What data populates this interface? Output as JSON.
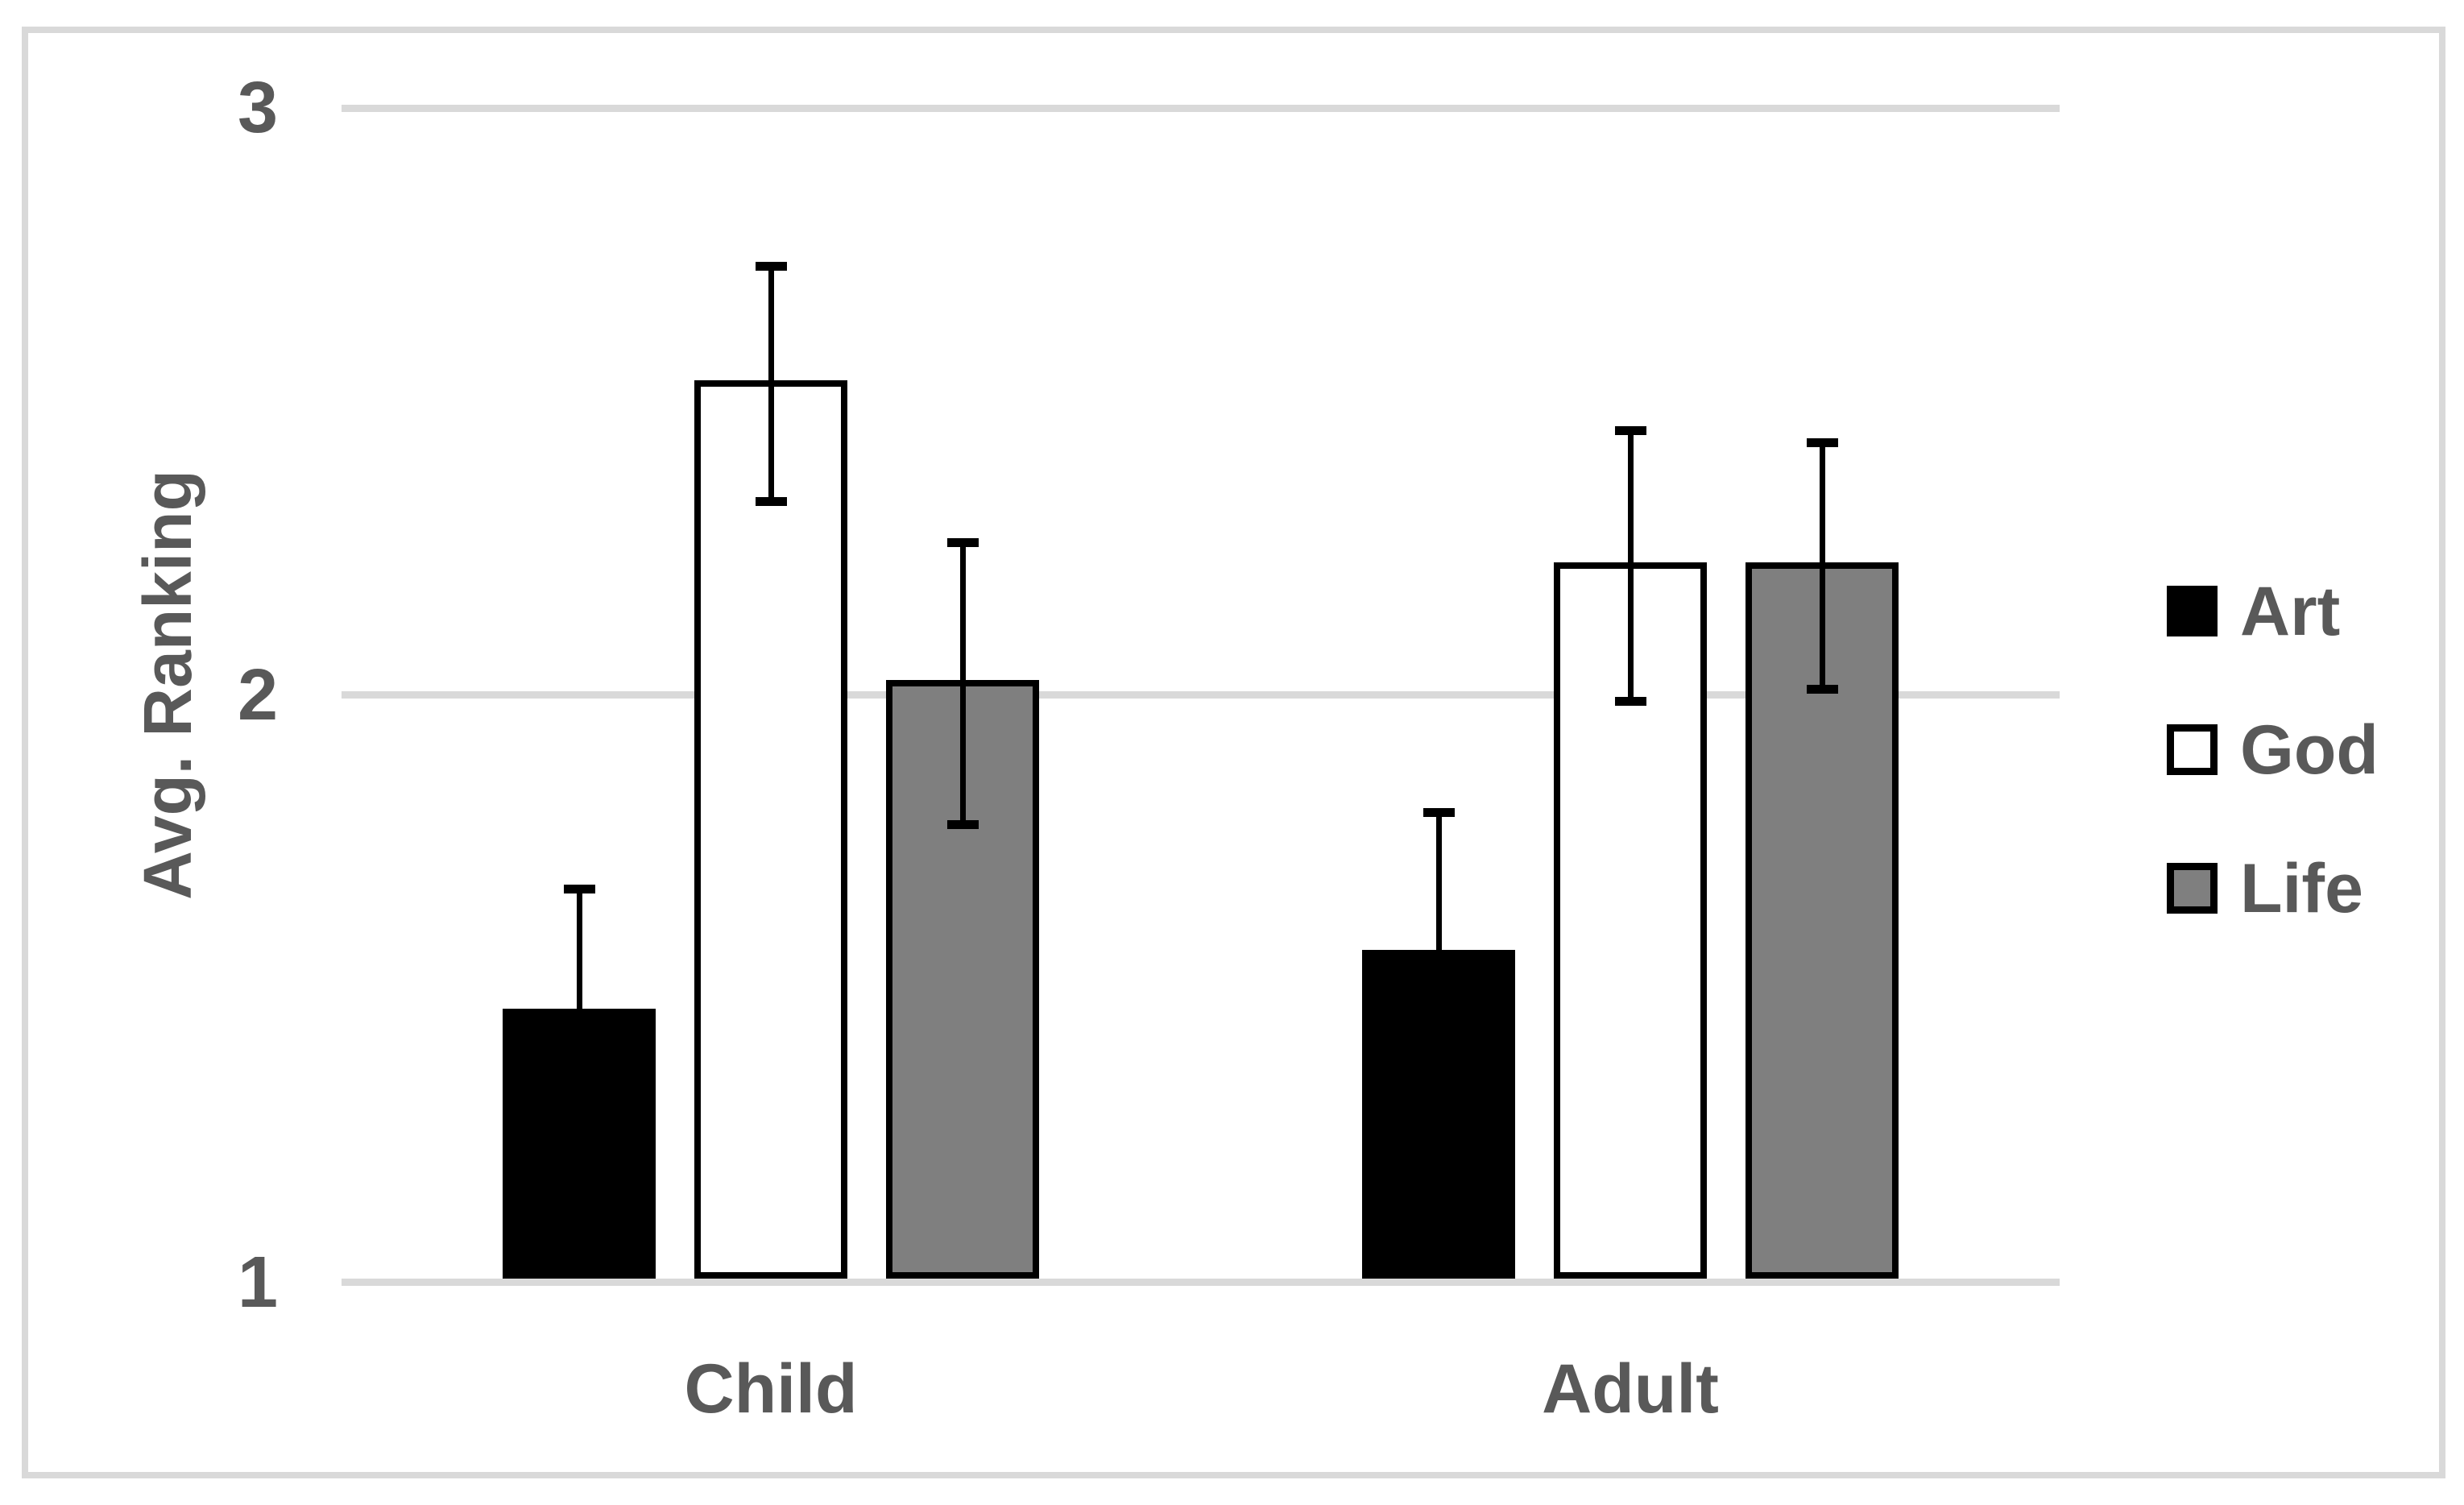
{
  "chart_data": {
    "type": "bar",
    "title": "",
    "categories": [
      "Child",
      "Adult"
    ],
    "series": [
      {
        "name": "Art",
        "fill": "#000000",
        "values": [
          1.46,
          1.56
        ],
        "errors": [
          0.21,
          0.24
        ]
      },
      {
        "name": "God",
        "fill": "#ffffff",
        "values": [
          2.53,
          2.22
        ],
        "errors": [
          0.2,
          0.23
        ]
      },
      {
        "name": "Life",
        "fill": "#7f7f7f",
        "values": [
          2.02,
          2.22
        ],
        "errors": [
          0.24,
          0.21
        ]
      }
    ],
    "xlabel": "",
    "ylabel": "Avg. Ranking",
    "yticks": [
      "1",
      "2",
      "3"
    ],
    "ylim": [
      1,
      3
    ],
    "grid": "horizontal",
    "legend_position": "right",
    "error_bars": true
  },
  "colors": {
    "text": "#595959",
    "gridline": "#d9d9d9",
    "frame_border": "#d9d9d9",
    "bar_border": "#000000",
    "background": "#ffffff"
  }
}
